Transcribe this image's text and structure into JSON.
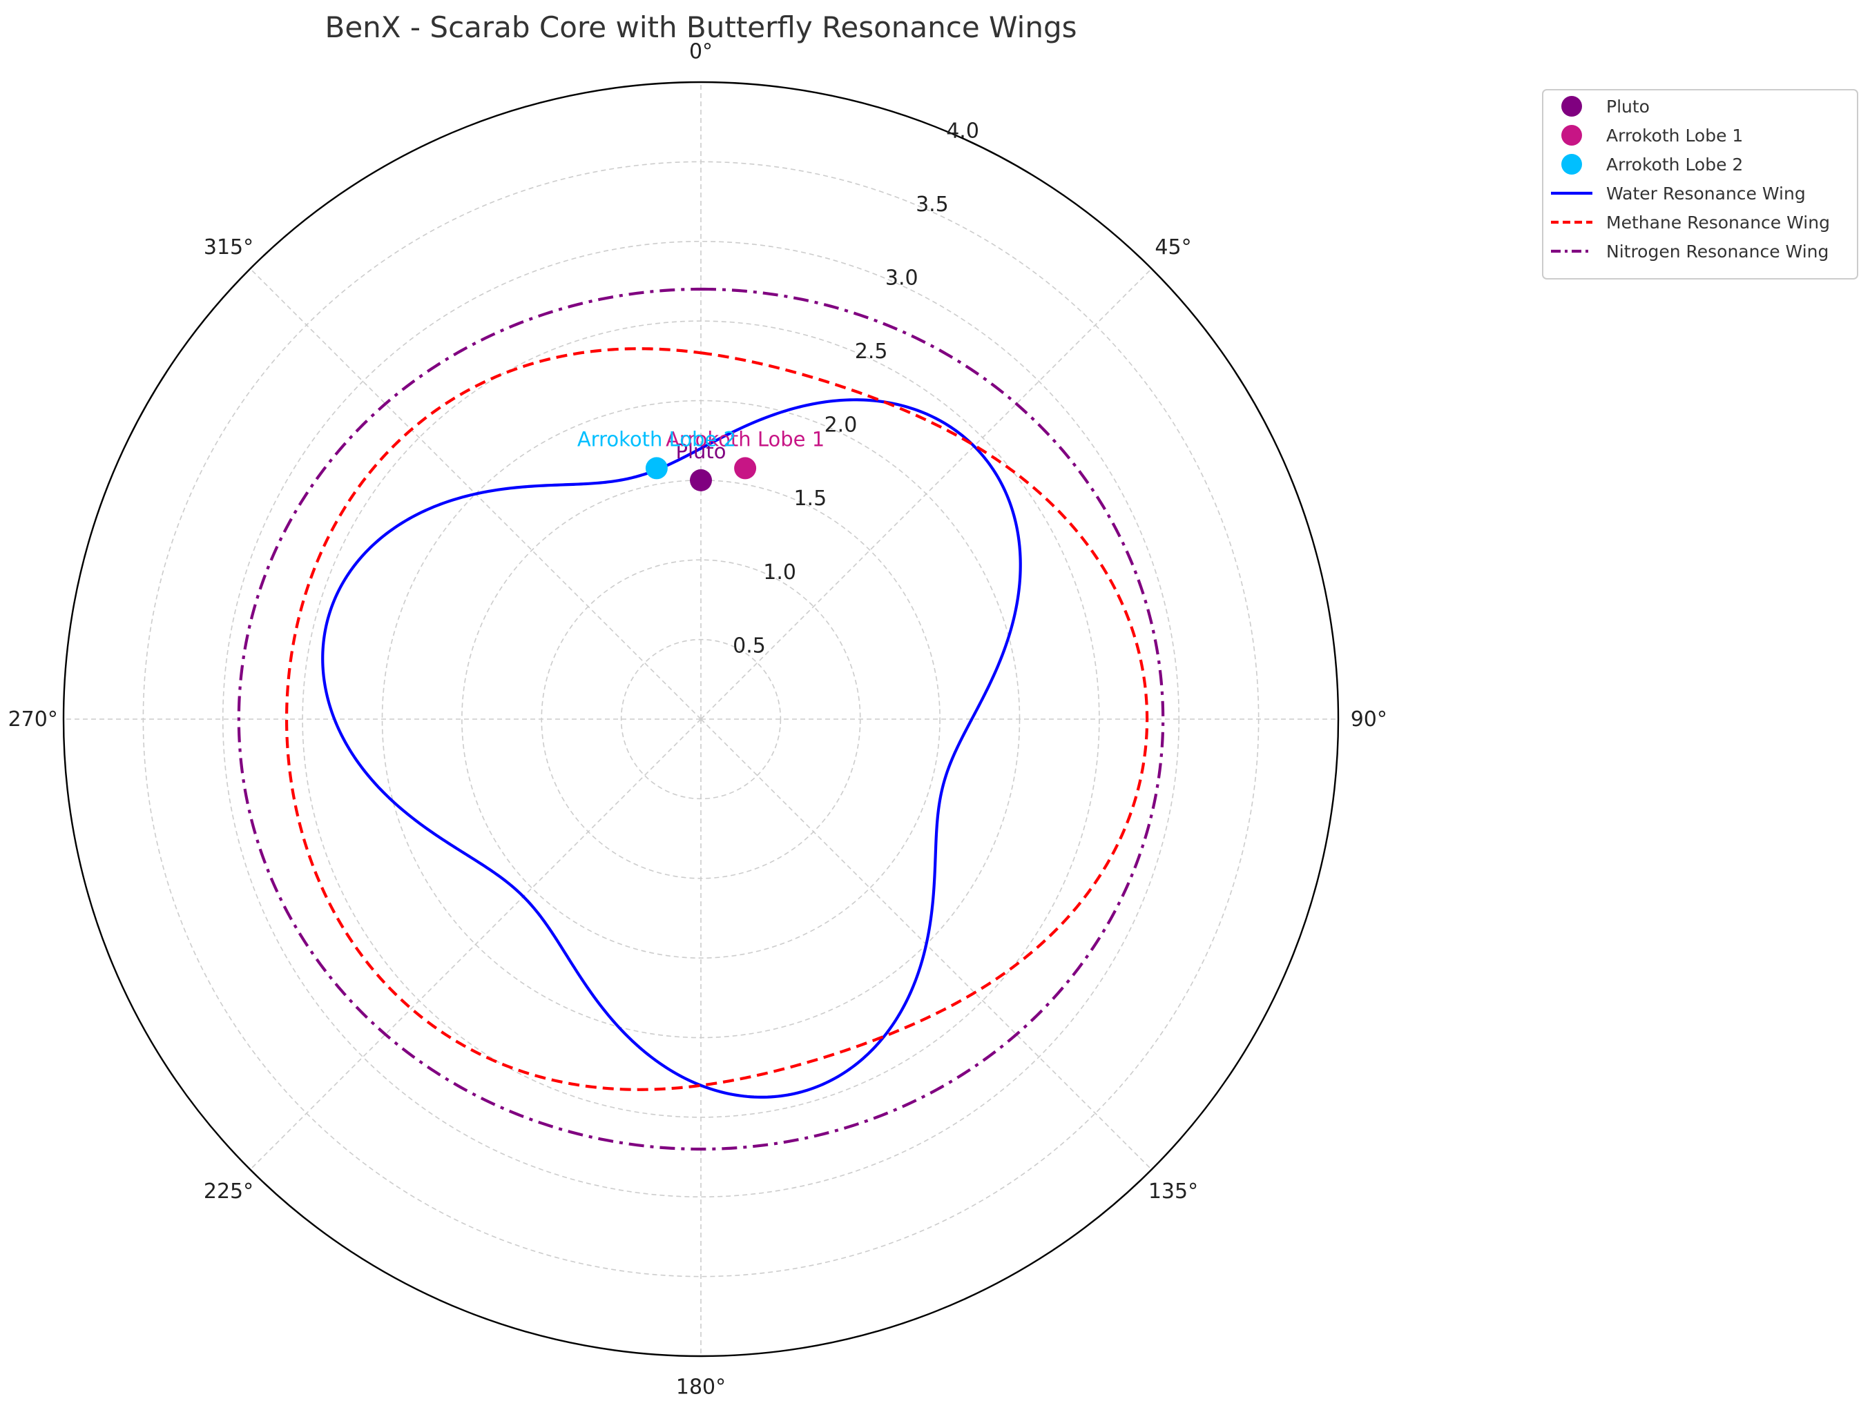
{
  "chart_data": {
    "type": "polar",
    "title": "BenX - Scarab Core with Butterfly Resonance Wings",
    "theta_direction": "clockwise",
    "theta_zero": "top",
    "rlim": [
      0,
      4.0
    ],
    "radial_ticks": [
      0.5,
      1.0,
      1.5,
      2.0,
      2.5,
      3.0,
      3.5,
      4.0
    ],
    "radial_tick_labels": [
      "0.5",
      "1.0",
      "1.5",
      "2.0",
      "2.5",
      "3.0",
      "3.5",
      "4.0"
    ],
    "angle_ticks": [
      0,
      45,
      90,
      135,
      180,
      225,
      270,
      315
    ],
    "angle_tick_labels": [
      "0°",
      "45°",
      "90°",
      "135°",
      "180°",
      "225°",
      "270°",
      "315°"
    ],
    "grid": true,
    "legend_position": "upper-right-outside",
    "points": [
      {
        "name": "Pluto",
        "theta": 0,
        "r": 1.5,
        "label": "Pluto",
        "color": "#800080"
      },
      {
        "name": "Arrokoth Lobe 1",
        "theta": 10,
        "r": 1.6,
        "label": "Arrokoth Lobe 1",
        "color": "#c71585"
      },
      {
        "name": "Arrokoth Lobe 2",
        "theta": -10,
        "r": 1.6,
        "label": "Arrokoth Lobe 2",
        "color": "#00bfff"
      }
    ],
    "series": [
      {
        "name": "Water Resonance Wing",
        "style": "solid",
        "color": "#0000ff",
        "formula": "r = 2 + 0.3*sin(3*theta) - 0.3*cos(3*theta)"
      },
      {
        "name": "Methane Resonance Wing",
        "style": "dashed",
        "color": "#ff0000",
        "formula": "r = 2.5 - 0.2*cos(2*theta) - 0.1*sin(3*theta)"
      },
      {
        "name": "Nitrogen Resonance Wing",
        "style": "dashdot",
        "color": "#800080",
        "formula": "r = 2.8 - 0.1*cos(2*theta)"
      }
    ]
  }
}
